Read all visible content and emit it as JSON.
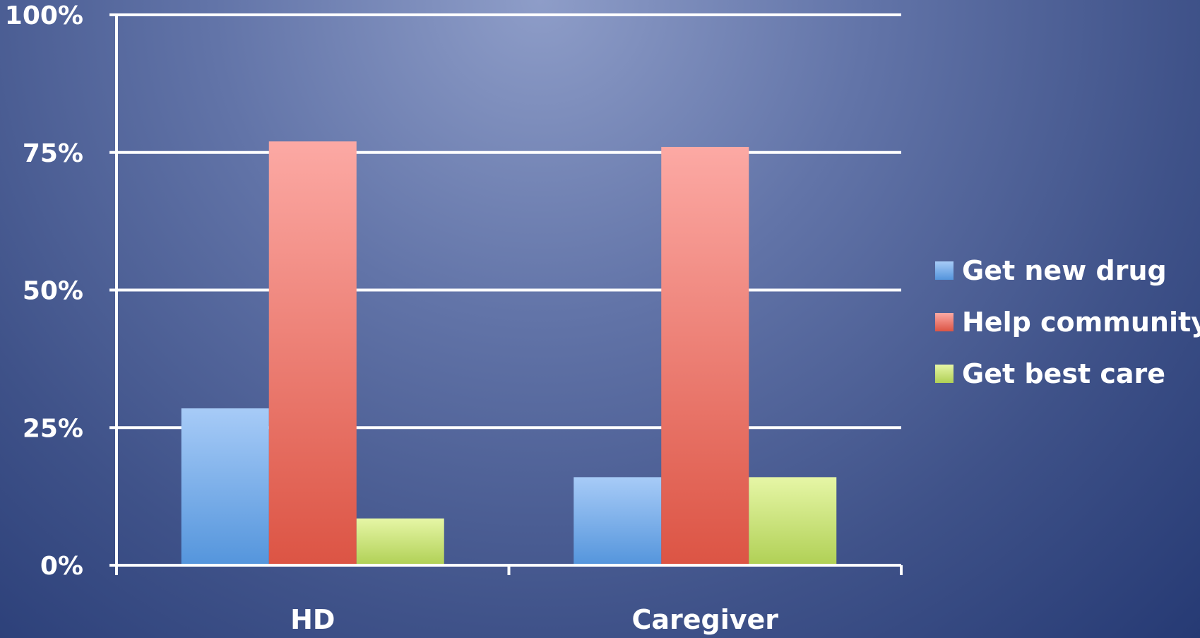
{
  "chart_data": {
    "type": "bar",
    "categories": [
      "HD",
      "Caregiver"
    ],
    "series": [
      {
        "name": "Get new drug",
        "values": [
          28.5,
          16
        ],
        "color": "#5b9be0"
      },
      {
        "name": "Help community",
        "values": [
          77,
          76
        ],
        "color": "#e05b4f"
      },
      {
        "name": "Get best care",
        "values": [
          8.5,
          16
        ],
        "color": "#b6d65a"
      }
    ],
    "ylim": [
      0,
      100
    ],
    "yticks": [
      "0%",
      "25%",
      "50%",
      "75%",
      "100%"
    ],
    "yunit": "%",
    "grid": true,
    "legend": "right"
  }
}
